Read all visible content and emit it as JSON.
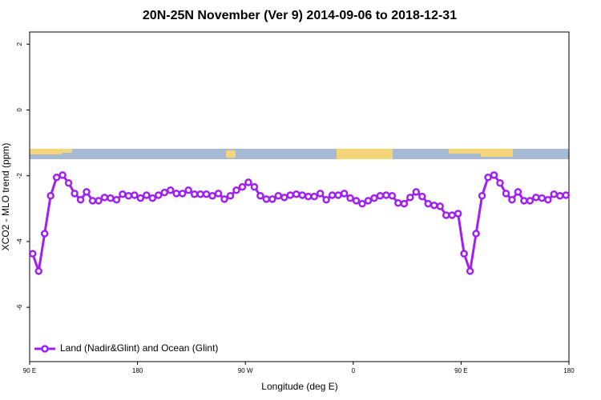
{
  "chart_data": {
    "type": "line",
    "title": "20N-25N November (Ver 9)   2014-09-06 to 2018-12-31",
    "x_label": "Longitude (deg E)",
    "y_label": "XCO2 - MLO trend (ppm)",
    "x": [
      92.5,
      97.5,
      102.5,
      107.5,
      112.5,
      117.5,
      122.5,
      127.5,
      132.5,
      137.5,
      142.5,
      147.5,
      152.5,
      157.5,
      162.5,
      167.5,
      172.5,
      177.5,
      182.5,
      187.5,
      192.5,
      197.5,
      202.5,
      207.5,
      212.5,
      217.5,
      222.5,
      227.5,
      232.5,
      237.5,
      242.5,
      247.5,
      252.5,
      257.5,
      262.5,
      267.5,
      272.5,
      277.5,
      282.5,
      287.5,
      292.5,
      297.5,
      302.5,
      307.5,
      312.5,
      317.5,
      322.5,
      327.5,
      332.5,
      337.5,
      342.5,
      347.5,
      352.5,
      357.5,
      362.5,
      367.5,
      372.5,
      377.5,
      382.5,
      387.5,
      392.5,
      397.5,
      402.5,
      407.5,
      412.5,
      417.5,
      422.5,
      427.5,
      432.5,
      437.5,
      442.5,
      447.5,
      452.5,
      457.5,
      462.5,
      467.5,
      472.5,
      477.5,
      482.5,
      487.5,
      492.5,
      497.5,
      502.5,
      507.5,
      512.5,
      517.5,
      522.5,
      527.5,
      532.5,
      537.5
    ],
    "series": [
      {
        "name": "Land (Nadir&Glint) and Ocean (Glint)",
        "color": "#a020f0",
        "values": [
          -4.37,
          -4.9,
          -3.76,
          -2.61,
          -2.05,
          -1.98,
          -2.22,
          -2.54,
          -2.73,
          -2.49,
          -2.76,
          -2.76,
          -2.66,
          -2.68,
          -2.73,
          -2.56,
          -2.61,
          -2.59,
          -2.68,
          -2.59,
          -2.68,
          -2.59,
          -2.51,
          -2.44,
          -2.54,
          -2.54,
          -2.44,
          -2.56,
          -2.56,
          -2.56,
          -2.61,
          -2.54,
          -2.71,
          -2.61,
          -2.44,
          -2.34,
          -2.2,
          -2.34,
          -2.61,
          -2.71,
          -2.71,
          -2.61,
          -2.66,
          -2.59,
          -2.56,
          -2.59,
          -2.63,
          -2.63,
          -2.54,
          -2.73,
          -2.59,
          -2.59,
          -2.54,
          -2.68,
          -2.76,
          -2.85,
          -2.76,
          -2.68,
          -2.61,
          -2.59,
          -2.61,
          -2.83,
          -2.85,
          -2.66,
          -2.49,
          -2.63,
          -2.85,
          -2.9,
          -2.93,
          -3.2,
          -3.2,
          -3.15,
          -4.37,
          -4.9,
          -3.76,
          -2.61,
          -2.05,
          -1.98,
          -2.22,
          -2.54,
          -2.73,
          -2.49,
          -2.76,
          -2.76,
          -2.66,
          -2.68,
          -2.73,
          -2.56,
          -2.61,
          -2.59
        ]
      }
    ],
    "xlim": [
      90,
      540
    ],
    "ylim": [
      -7.65,
      2.37
    ],
    "xticks": [
      {
        "value": 90,
        "label": "90 E"
      },
      180,
      {
        "value": 270,
        "label": "90 W"
      },
      {
        "value": 360,
        "label": "0"
      },
      {
        "value": 450,
        "label": "90 E"
      },
      {
        "value": 540,
        "label": "180"
      }
    ],
    "yticks": [
      -6,
      -4,
      -2,
      0,
      2
    ],
    "legend": "bottom-left"
  }
}
